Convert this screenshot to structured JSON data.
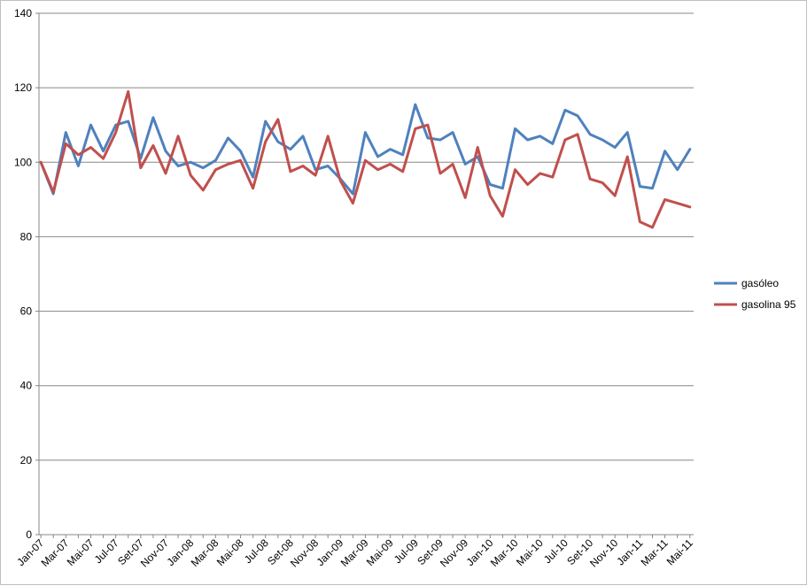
{
  "chart_data": {
    "type": "line",
    "title": "",
    "xlabel": "",
    "ylabel": "",
    "ylim": [
      0,
      140
    ],
    "yticks": [
      0,
      20,
      40,
      60,
      80,
      100,
      120,
      140
    ],
    "grid": "horizontal",
    "legend_position": "right",
    "categories": [
      "Jan-07",
      "Fev-07",
      "Mar-07",
      "Abr-07",
      "Mai-07",
      "Jun-07",
      "Jul-07",
      "Ago-07",
      "Set-07",
      "Out-07",
      "Nov-07",
      "Dez-07",
      "Jan-08",
      "Fev-08",
      "Mar-08",
      "Abr-08",
      "Mai-08",
      "Jun-08",
      "Jul-08",
      "Ago-08",
      "Set-08",
      "Out-08",
      "Nov-08",
      "Dez-08",
      "Jan-09",
      "Fev-09",
      "Mar-09",
      "Abr-09",
      "Mai-09",
      "Jun-09",
      "Jul-09",
      "Ago-09",
      "Set-09",
      "Out-09",
      "Nov-09",
      "Dez-09",
      "Jan-10",
      "Fev-10",
      "Mar-10",
      "Abr-10",
      "Mai-10",
      "Jun-10",
      "Jul-10",
      "Ago-10",
      "Set-10",
      "Out-10",
      "Nov-10",
      "Dez-10",
      "Jan-11",
      "Fev-11",
      "Mar-11",
      "Abr-11",
      "Mai-11"
    ],
    "tick_labels": [
      "Jan-07",
      "Mar-07",
      "Mai-07",
      "Jul-07",
      "Set-07",
      "Nov-07",
      "Jan-08",
      "Mar-08",
      "Mai-08",
      "Jul-08",
      "Set-08",
      "Nov-08",
      "Jan-09",
      "Mar-09",
      "Mai-09",
      "Jul-09",
      "Set-09",
      "Nov-09",
      "Jan-10",
      "Mar-10",
      "Mai-10",
      "Jul-10",
      "Set-10",
      "Nov-10",
      "Jan-11",
      "Mar-11",
      "Mai-11"
    ],
    "series": [
      {
        "name": "gasóleo",
        "color": "#4f81bd",
        "values": [
          100,
          91.5,
          108,
          99,
          110,
          103,
          110,
          111,
          101,
          112,
          103,
          99,
          100,
          98.5,
          100.5,
          106.5,
          103,
          96,
          111,
          105.5,
          103.5,
          107,
          98,
          99,
          95.5,
          91.5,
          108,
          101.5,
          103.5,
          102,
          115.5,
          106.5,
          106,
          108,
          99.5,
          101.5,
          94,
          93,
          109,
          106,
          107,
          105,
          114,
          112.5,
          107.5,
          106,
          104,
          108,
          93.5,
          93,
          103,
          98,
          103.5
        ]
      },
      {
        "name": "gasolina 95",
        "color": "#c0504d",
        "values": [
          100,
          92,
          105,
          102,
          104,
          101,
          108,
          119,
          98.5,
          104.5,
          97,
          107,
          96.5,
          92.5,
          98,
          99.5,
          100.5,
          93,
          105.5,
          111.5,
          97.5,
          99,
          96.5,
          107,
          95,
          89,
          100.5,
          98,
          99.5,
          97.5,
          109,
          110,
          97,
          99.5,
          90.5,
          104,
          91,
          85.5,
          98,
          94,
          97,
          96,
          106,
          107.5,
          95.5,
          94.5,
          91,
          101.5,
          84,
          82.5,
          90,
          89,
          88
        ]
      }
    ]
  }
}
